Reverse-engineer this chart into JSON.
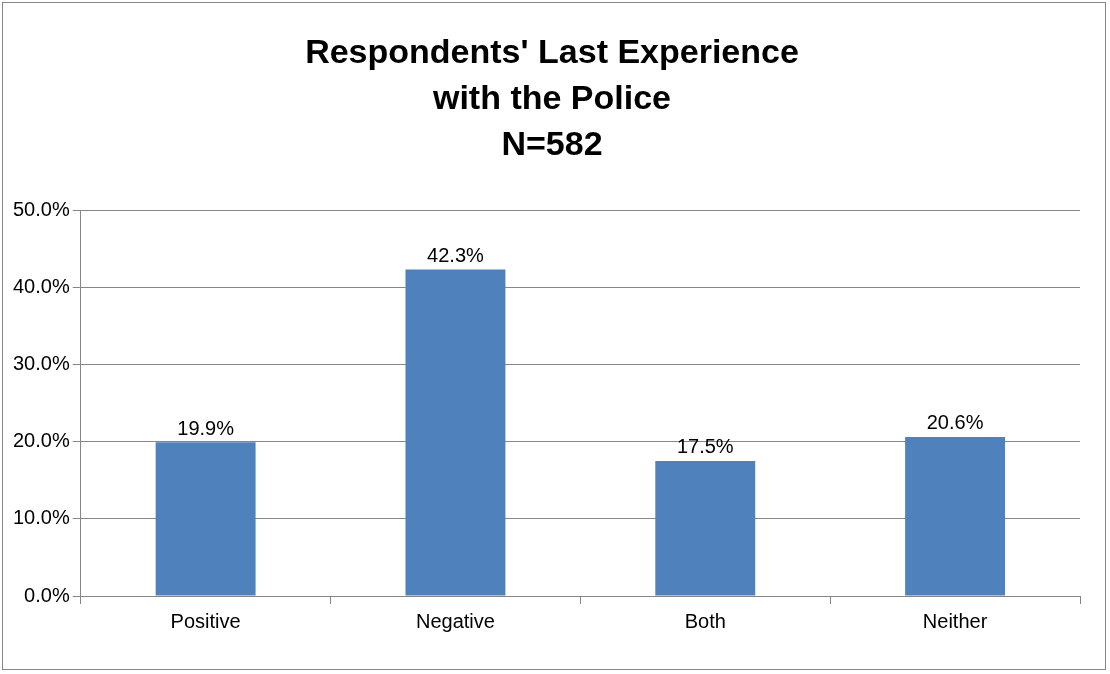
{
  "chart_data": {
    "type": "bar",
    "title": "Respondents' Last Experience with the Police",
    "subtitle": "N=582",
    "categories": [
      "Positive",
      "Negative",
      "Both",
      "Neither"
    ],
    "values": [
      19.9,
      42.3,
      17.5,
      20.6
    ],
    "value_labels": [
      "19.9%",
      "42.3%",
      "17.5%",
      "20.6%"
    ],
    "color": "#4f81bd",
    "ylim": [
      0,
      50
    ],
    "yticks": [
      {
        "value": 0,
        "label": "0.0%"
      },
      {
        "value": 10,
        "label": "10.0%"
      },
      {
        "value": 20,
        "label": "20.0%"
      },
      {
        "value": 30,
        "label": "30.0%"
      },
      {
        "value": 40,
        "label": "40.0%"
      },
      {
        "value": 50,
        "label": "50.0%"
      }
    ],
    "grid": "y"
  }
}
